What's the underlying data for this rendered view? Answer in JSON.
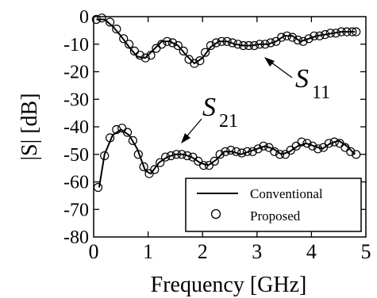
{
  "chart_data": {
    "type": "line",
    "xlabel": "Frequency [GHz]",
    "ylabel": "|S| [dB]",
    "xlim": [
      0,
      5
    ],
    "ylim": [
      -80,
      0
    ],
    "x_ticks": [
      "0",
      "1",
      "2",
      "3",
      "4",
      "5"
    ],
    "y_ticks": [
      "0",
      "-10",
      "-20",
      "-30",
      "-40",
      "-50",
      "-60",
      "-70",
      "-80"
    ],
    "grid": false,
    "legend_position": "bottom-right",
    "legend": {
      "line_label": "Conventional",
      "marker_label": "Proposed"
    },
    "annotations": [
      {
        "symbol": "S",
        "subscript": "11"
      },
      {
        "symbol": "S",
        "subscript": "21"
      }
    ],
    "series": [
      {
        "name": "Conventional",
        "role": "S11",
        "x": [
          0.05,
          0.2,
          0.35,
          0.5,
          0.65,
          0.8,
          0.95,
          1.1,
          1.25,
          1.4,
          1.55,
          1.7,
          1.85,
          2.0,
          2.15,
          2.3,
          2.45,
          2.6,
          2.75,
          2.9,
          3.05,
          3.2,
          3.35,
          3.5,
          3.65,
          3.8,
          3.95,
          4.1,
          4.25,
          4.4,
          4.55,
          4.7,
          4.8
        ],
        "y": [
          -1,
          -1,
          -3.5,
          -7,
          -11,
          -14.5,
          -15,
          -12,
          -9,
          -9,
          -10.5,
          -14,
          -17,
          -15,
          -11,
          -9,
          -9,
          -10,
          -10.5,
          -10.5,
          -10,
          -10,
          -9,
          -7,
          -7,
          -9,
          -8,
          -7,
          -6.5,
          -6,
          -5.5,
          -5.5,
          -5.5
        ]
      },
      {
        "name": "Proposed",
        "role": "S11",
        "x": [
          0.05,
          0.15,
          0.3,
          0.42,
          0.55,
          0.65,
          0.75,
          0.85,
          0.95,
          1.05,
          1.15,
          1.25,
          1.35,
          1.45,
          1.55,
          1.65,
          1.75,
          1.85,
          1.95,
          2.05,
          2.15,
          2.25,
          2.35,
          2.45,
          2.55,
          2.65,
          2.75,
          2.85,
          2.95,
          3.05,
          3.15,
          3.25,
          3.35,
          3.45,
          3.55,
          3.65,
          3.75,
          3.85,
          3.95,
          4.05,
          4.15,
          4.25,
          4.35,
          4.45,
          4.55,
          4.65,
          4.75,
          4.82
        ],
        "y": [
          -1,
          -0.5,
          -2,
          -4.5,
          -8,
          -10,
          -12.5,
          -14,
          -15,
          -14,
          -11.5,
          -10,
          -9,
          -9.5,
          -10.5,
          -12.5,
          -15.5,
          -17,
          -16,
          -13,
          -10.5,
          -9.5,
          -9,
          -9,
          -9.5,
          -10,
          -10.5,
          -10.5,
          -10.5,
          -10,
          -10,
          -9.5,
          -9,
          -7.5,
          -7,
          -7.5,
          -8.5,
          -9,
          -8,
          -7,
          -7,
          -6.5,
          -6,
          -6,
          -5.5,
          -5.5,
          -5.5,
          -5.5
        ]
      },
      {
        "name": "Conventional",
        "role": "S21",
        "x": [
          0.1,
          0.2,
          0.35,
          0.5,
          0.65,
          0.8,
          0.95,
          1.05,
          1.2,
          1.35,
          1.5,
          1.65,
          1.8,
          1.95,
          2.1,
          2.25,
          2.4,
          2.55,
          2.7,
          2.85,
          3.0,
          3.15,
          3.3,
          3.45,
          3.6,
          3.75,
          3.9,
          4.05,
          4.2,
          4.35,
          4.5,
          4.65,
          4.8
        ],
        "y": [
          -62,
          -50,
          -43,
          -41,
          -43,
          -48,
          -56,
          -57,
          -53,
          -51,
          -50,
          -50,
          -51,
          -53,
          -54,
          -52,
          -49,
          -49,
          -50,
          -49,
          -48,
          -47,
          -48,
          -50,
          -49,
          -47,
          -46,
          -47,
          -48,
          -46,
          -45,
          -47,
          -50
        ]
      },
      {
        "name": "Proposed",
        "role": "S21",
        "x": [
          0.08,
          0.2,
          0.3,
          0.42,
          0.52,
          0.62,
          0.72,
          0.82,
          0.92,
          1.02,
          1.12,
          1.22,
          1.32,
          1.42,
          1.52,
          1.62,
          1.72,
          1.82,
          1.92,
          2.02,
          2.12,
          2.22,
          2.32,
          2.42,
          2.52,
          2.62,
          2.72,
          2.82,
          2.92,
          3.02,
          3.12,
          3.22,
          3.32,
          3.42,
          3.52,
          3.62,
          3.72,
          3.82,
          3.92,
          4.02,
          4.12,
          4.22,
          4.32,
          4.42,
          4.52,
          4.62,
          4.72,
          4.82
        ],
        "y": [
          -62,
          -50.5,
          -44,
          -41,
          -40.5,
          -42,
          -45,
          -50,
          -54.5,
          -57,
          -55.5,
          -53,
          -51,
          -50.5,
          -50,
          -50,
          -50.5,
          -51,
          -52.5,
          -54,
          -54,
          -52.5,
          -50,
          -49,
          -48.5,
          -49,
          -49.5,
          -49,
          -49,
          -48,
          -47,
          -47.5,
          -49,
          -50,
          -50,
          -48.5,
          -47,
          -45.5,
          -46,
          -47,
          -48,
          -47.5,
          -46,
          -45.5,
          -46,
          -47.5,
          -49,
          -50
        ]
      }
    ]
  }
}
